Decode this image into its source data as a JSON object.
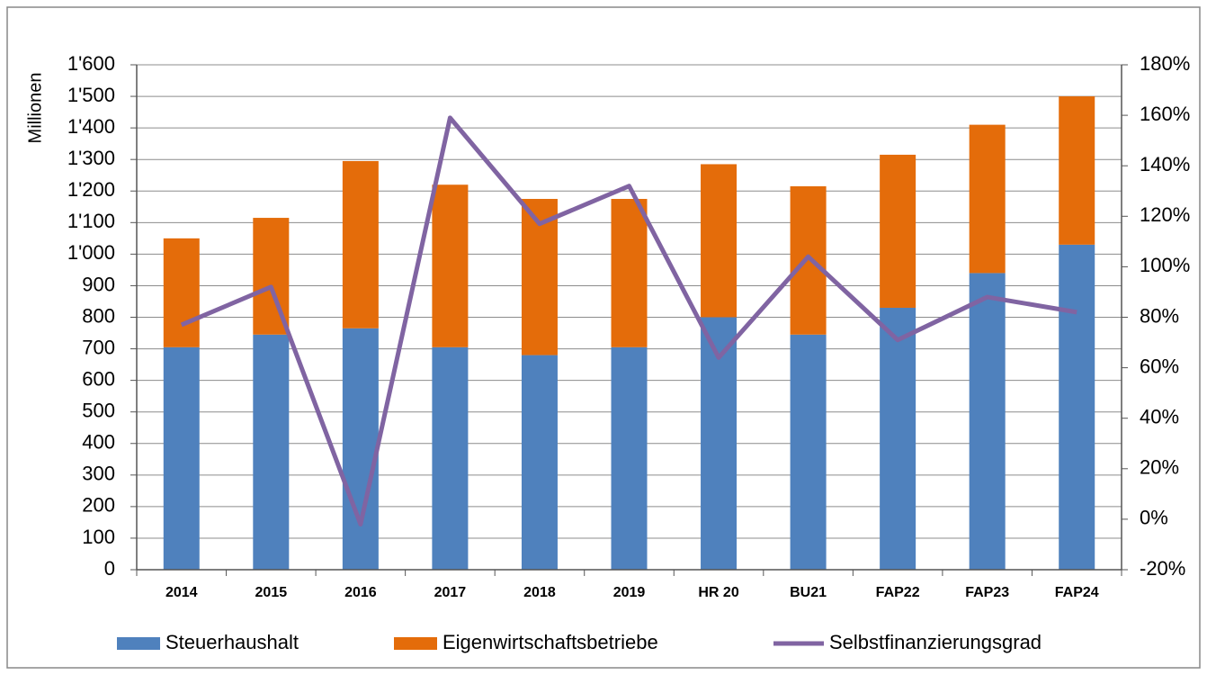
{
  "chart_data": {
    "type": "bar",
    "stacked": true,
    "ylabel": "Millionen",
    "categories": [
      "2014",
      "2015",
      "2016",
      "2017",
      "2018",
      "2019",
      "HR 20",
      "BU21",
      "FAP22",
      "FAP23",
      "FAP24"
    ],
    "series": [
      {
        "name": "Steuerhaushalt",
        "color": "#4f81bd",
        "type": "bar",
        "values": [
          705,
          745,
          765,
          705,
          680,
          705,
          800,
          745,
          830,
          940,
          1030
        ]
      },
      {
        "name": "Eigenwirtschaftsbetriebe",
        "color": "#e46c0a",
        "type": "bar",
        "values": [
          345,
          370,
          530,
          515,
          495,
          470,
          485,
          470,
          485,
          470,
          470
        ]
      },
      {
        "name": "Selbstfinanzierungsgrad",
        "color": "#8064a2",
        "type": "line",
        "axis": "y2",
        "values": [
          77,
          92,
          -2,
          159,
          117,
          132,
          64,
          104,
          71,
          88,
          82
        ]
      }
    ],
    "ylim": [
      0,
      1600
    ],
    "yticks": [
      0,
      100,
      200,
      300,
      400,
      500,
      600,
      700,
      800,
      900,
      {
        "value": 1000,
        "label": "1'000"
      },
      {
        "value": 1100,
        "label": "1'100"
      },
      {
        "value": 1200,
        "label": "1'200"
      },
      {
        "value": 1300,
        "label": "1'300"
      },
      {
        "value": 1400,
        "label": "1'400"
      },
      {
        "value": 1500,
        "label": "1'500"
      },
      {
        "value": 1600,
        "label": "1'600"
      }
    ],
    "y2lim": [
      -20,
      180
    ],
    "y2ticks": [
      {
        "value": -20,
        "label": "-20%"
      },
      {
        "value": 0,
        "label": "0%"
      },
      {
        "value": 20,
        "label": "20%"
      },
      {
        "value": 40,
        "label": "40%"
      },
      {
        "value": 60,
        "label": "60%"
      },
      {
        "value": 80,
        "label": "80%"
      },
      {
        "value": 100,
        "label": "100%"
      },
      {
        "value": 120,
        "label": "120%"
      },
      {
        "value": 140,
        "label": "140%"
      },
      {
        "value": 160,
        "label": "160%"
      },
      {
        "value": 180,
        "label": "180%"
      }
    ],
    "grid": true,
    "legend": "bottom"
  }
}
